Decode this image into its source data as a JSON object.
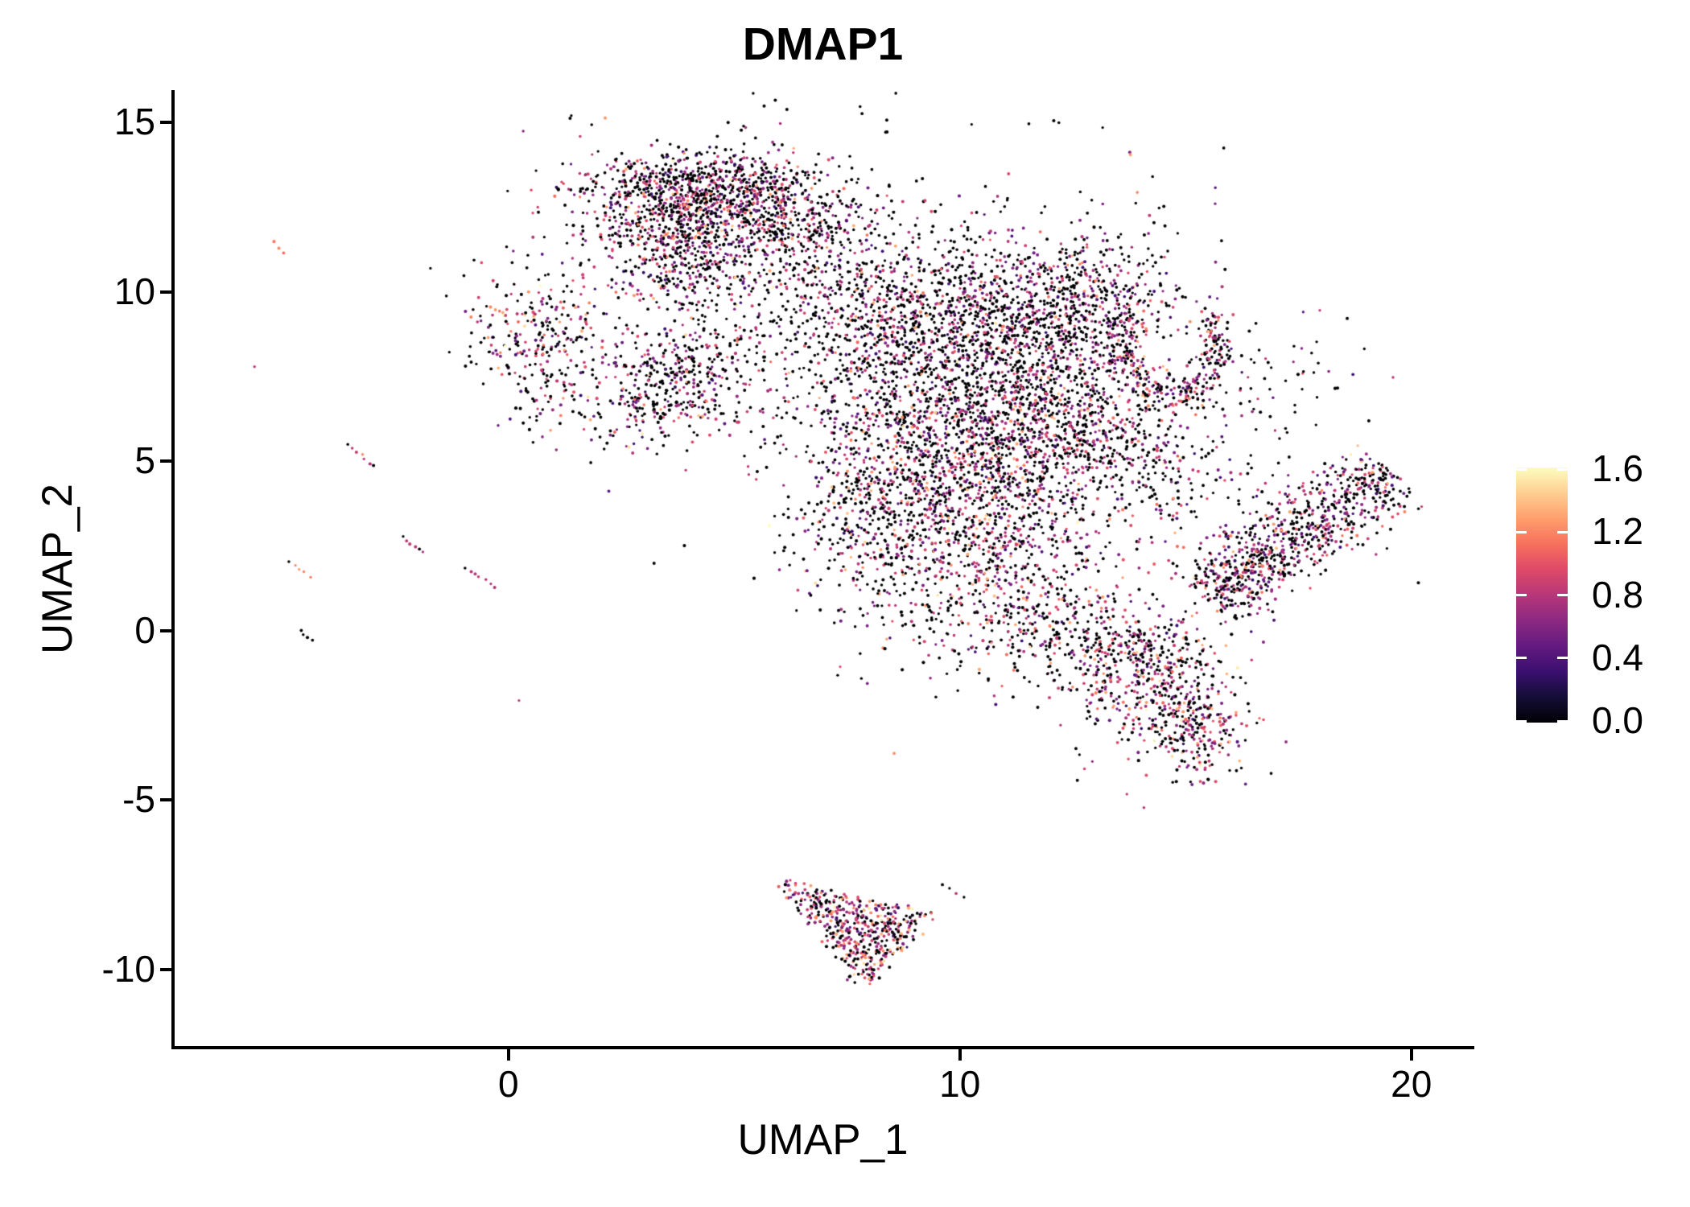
{
  "figure": {
    "title": "DMAP1"
  },
  "chart_data": {
    "type": "scatter",
    "title": "DMAP1",
    "xlabel": "UMAP_1",
    "ylabel": "UMAP_2",
    "xlim": [
      -7.43,
      21.36
    ],
    "ylim": [
      -12.31,
      15.95
    ],
    "grid": false,
    "x_ticks": [
      {
        "label": "0",
        "value": 0
      },
      {
        "label": "10",
        "value": 10
      },
      {
        "label": "20",
        "value": 20
      }
    ],
    "y_ticks": [
      {
        "label": "15",
        "value": 15
      },
      {
        "label": "10",
        "value": 10
      },
      {
        "label": "5",
        "value": 5
      },
      {
        "label": "0",
        "value": 0
      },
      {
        "label": "-5",
        "value": -5
      },
      {
        "label": "-10",
        "value": -10
      }
    ],
    "colorbar": {
      "position": "right",
      "min": 0.0,
      "max": 1.6,
      "palette": "magma",
      "ticks": [
        {
          "label": "1.6",
          "value": 1.6
        },
        {
          "label": "1.2",
          "value": 1.2
        },
        {
          "label": "0.8",
          "value": 0.8
        },
        {
          "label": "0.4",
          "value": 0.4
        },
        {
          "label": "0.0",
          "value": 0.0
        }
      ],
      "stops": [
        "#000004",
        "#140E36",
        "#3B0F70",
        "#641A80",
        "#8C2981",
        "#B73779",
        "#DE4968",
        "#F7705C",
        "#FE9F6D",
        "#FECE91",
        "#FCFDBF"
      ]
    },
    "style": {
      "point_radius_px": 1.85
    },
    "seed": 1337,
    "value_ranges": {
      "low": [
        0.25,
        0.55
      ],
      "mid": [
        0.55,
        1.0
      ],
      "high": [
        1.0,
        1.35
      ],
      "vhigh": [
        1.35,
        1.62
      ]
    },
    "value_mixes": {
      "std": [
        0.52,
        0.1,
        0.295,
        0.07,
        0.015
      ],
      "dark": [
        0.68,
        0.08,
        0.21,
        0.028,
        0.002
      ],
      "darkish": [
        0.58,
        0.09,
        0.28,
        0.045,
        0.005
      ],
      "warm": [
        0.45,
        0.08,
        0.33,
        0.12,
        0.02
      ],
      "hot": [
        0.36,
        0.08,
        0.34,
        0.18,
        0.04
      ]
    },
    "clusters": [
      {
        "id": "a1",
        "type": "gauss",
        "cx": 3.55,
        "cy": 12.45,
        "sx": 1.05,
        "sy": 0.72,
        "count": 480,
        "mix": "std"
      },
      {
        "id": "a2",
        "type": "gauss",
        "cx": 5.25,
        "cy": 12.4,
        "sx": 0.95,
        "sy": 0.75,
        "count": 430,
        "mix": "std"
      },
      {
        "id": "a3",
        "type": "gauss",
        "cx": 4.4,
        "cy": 13.35,
        "sx": 1.25,
        "sy": 0.45,
        "count": 240,
        "mix": "darkish"
      },
      {
        "id": "a4",
        "type": "gauss",
        "cx": 4.05,
        "cy": 10.7,
        "sx": 0.85,
        "sy": 0.65,
        "count": 230,
        "mix": "std"
      },
      {
        "id": "a5",
        "type": "gauss",
        "cx": 4.5,
        "cy": 12.0,
        "sx": 1.9,
        "sy": 1.5,
        "count": 260,
        "mix": "dark"
      },
      {
        "id": "a6",
        "type": "gauss",
        "cx": 6.55,
        "cy": 11.3,
        "sx": 0.75,
        "sy": 0.95,
        "count": 110,
        "mix": "dark"
      },
      {
        "id": "b1",
        "type": "gauss",
        "cx": 0.55,
        "cy": 8.7,
        "sx": 0.75,
        "sy": 0.95,
        "count": 240,
        "mix": "warm"
      },
      {
        "id": "b2",
        "type": "gauss",
        "cx": 0.9,
        "cy": 6.9,
        "sx": 0.5,
        "sy": 0.6,
        "count": 35,
        "mix": "dark"
      },
      {
        "id": "c1",
        "type": "gauss",
        "cx": 3.4,
        "cy": 7.1,
        "sx": 0.95,
        "sy": 0.8,
        "count": 370,
        "mix": "std"
      },
      {
        "id": "c2",
        "type": "gauss",
        "cx": 4.55,
        "cy": 8.3,
        "sx": 0.6,
        "sy": 0.6,
        "count": 80,
        "mix": "dark"
      },
      {
        "id": "d1",
        "type": "gauss",
        "cx": 8.6,
        "cy": 9.3,
        "sx": 1.25,
        "sy": 1.4,
        "count": 650,
        "mix": "darkish"
      },
      {
        "id": "d2",
        "type": "gauss",
        "cx": 11.2,
        "cy": 8.7,
        "sx": 1.45,
        "sy": 1.5,
        "count": 950,
        "mix": "darkish"
      },
      {
        "id": "d3",
        "type": "gauss",
        "cx": 9.4,
        "cy": 5.4,
        "sx": 1.45,
        "sy": 1.6,
        "count": 850,
        "mix": "std"
      },
      {
        "id": "d4",
        "type": "gauss",
        "cx": 12.3,
        "cy": 5.6,
        "sx": 1.45,
        "sy": 1.45,
        "count": 780,
        "mix": "std"
      },
      {
        "id": "d5",
        "type": "gauss",
        "cx": 10.3,
        "cy": 2.5,
        "sx": 1.25,
        "sy": 1.35,
        "count": 430,
        "mix": "warm"
      },
      {
        "id": "d6",
        "type": "gauss",
        "cx": 13.0,
        "cy": 9.9,
        "sx": 0.95,
        "sy": 0.85,
        "count": 260,
        "mix": "darkish"
      },
      {
        "id": "d7",
        "type": "gauss",
        "cx": 10.5,
        "cy": 6.5,
        "sx": 2.9,
        "sy": 3.2,
        "count": 650,
        "mix": "dark"
      },
      {
        "id": "d8",
        "type": "gauss",
        "cx": 11.8,
        "cy": 0.3,
        "sx": 0.95,
        "sy": 0.85,
        "count": 210,
        "mix": "warm"
      },
      {
        "id": "d9",
        "type": "gauss",
        "cx": 7.85,
        "cy": 2.9,
        "sx": 0.75,
        "sy": 1.15,
        "count": 240,
        "mix": "std"
      },
      {
        "id": "e1",
        "type": "crescent",
        "cx": 14.7,
        "cy": 8.35,
        "rx": 1.05,
        "ry": 1.45,
        "a0": 140,
        "a1": 400,
        "thick": 0.17,
        "count": 310,
        "mix": "std"
      },
      {
        "id": "n7",
        "type": "gauss",
        "cx": 16.8,
        "cy": 7.5,
        "sx": 0.85,
        "sy": 0.8,
        "count": 55,
        "mix": "dark"
      },
      {
        "id": "g1",
        "type": "band",
        "x1": 15.45,
        "y1": 0.9,
        "x2": 19.5,
        "y2": 4.75,
        "width": 0.52,
        "count": 720,
        "mix": "std"
      },
      {
        "id": "g2",
        "type": "gauss",
        "cx": 16.1,
        "cy": 1.8,
        "sx": 0.65,
        "sy": 0.65,
        "count": 110,
        "mix": "std"
      },
      {
        "id": "h1",
        "type": "gauss",
        "cx": 14.3,
        "cy": -1.55,
        "sx": 0.95,
        "sy": 1.0,
        "count": 400,
        "mix": "warm"
      },
      {
        "id": "h2",
        "type": "gauss",
        "cx": 15.15,
        "cy": -2.9,
        "sx": 0.65,
        "sy": 0.75,
        "count": 200,
        "mix": "warm"
      },
      {
        "id": "h3",
        "type": "gauss",
        "cx": 13.7,
        "cy": -0.3,
        "sx": 0.7,
        "sy": 0.6,
        "count": 130,
        "mix": "std"
      },
      {
        "id": "i1",
        "type": "triangle",
        "p1": [
          5.85,
          -7.35
        ],
        "p2": [
          9.35,
          -8.35
        ],
        "p3": [
          7.95,
          -10.55
        ],
        "count": 500,
        "mix": "hot"
      },
      {
        "id": "n1",
        "type": "gauss",
        "cx": 6.7,
        "cy": 12.1,
        "sx": 0.6,
        "sy": 0.7,
        "count": 70,
        "mix": "dark"
      },
      {
        "id": "n2",
        "type": "gauss",
        "cx": 6.3,
        "cy": 8.1,
        "sx": 1.1,
        "sy": 1.2,
        "count": 80,
        "mix": "dark"
      },
      {
        "id": "n3",
        "type": "gauss",
        "cx": 12.1,
        "cy": -0.9,
        "sx": 1.7,
        "sy": 0.75,
        "count": 80,
        "mix": "dark"
      },
      {
        "id": "n4",
        "type": "gauss",
        "cx": 8.9,
        "cy": 0.7,
        "sx": 0.75,
        "sy": 1.1,
        "count": 60,
        "mix": "dark"
      },
      {
        "id": "n5",
        "type": "gauss",
        "cx": 15.3,
        "cy": 4.6,
        "sx": 1.2,
        "sy": 1.0,
        "count": 80,
        "mix": "dark"
      },
      {
        "id": "n6",
        "type": "gauss",
        "cx": 2.0,
        "cy": 9.3,
        "sx": 0.9,
        "sy": 0.8,
        "count": 14,
        "mix": "dark"
      },
      {
        "id": "n8",
        "type": "gauss",
        "cx": 1.3,
        "cy": 6.1,
        "sx": 0.5,
        "sy": 0.5,
        "count": 10,
        "mix": "dark"
      }
    ],
    "streaks": [
      {
        "id": "s1",
        "x1": -5.2,
        "y1": 11.45,
        "x2": -4.95,
        "y2": 11.15,
        "values": [
          1.15,
          1.2,
          1.1
        ]
      },
      {
        "id": "s2",
        "x1": -3.55,
        "y1": 5.5,
        "x2": -3.0,
        "y2": 4.85,
        "values": [
          0,
          0.8,
          0.85,
          1.2,
          0.8,
          0.75,
          0
        ]
      },
      {
        "id": "s3",
        "x1": -2.35,
        "y1": 2.75,
        "x2": -1.9,
        "y2": 2.3,
        "values": [
          0,
          0.8,
          0.85,
          0.8,
          0,
          0.75
        ]
      },
      {
        "id": "s4",
        "x1": -4.85,
        "y1": 2.05,
        "x2": -4.4,
        "y2": 1.6,
        "values": [
          0,
          1.2,
          1.25,
          1.2,
          1.15
        ]
      },
      {
        "id": "s5",
        "x1": -0.95,
        "y1": 1.85,
        "x2": -0.3,
        "y2": 1.3,
        "values": [
          0,
          0.78,
          0.8,
          0.85,
          0.8,
          0.75,
          0.8
        ]
      },
      {
        "id": "s6",
        "x1": -4.6,
        "y1": 0.0,
        "x2": -4.35,
        "y2": -0.3,
        "values": [
          0,
          0,
          0,
          0
        ]
      },
      {
        "id": "s7",
        "x1": 0.25,
        "y1": -2.05,
        "x2": 0.25,
        "y2": -2.05,
        "values": [
          0.8
        ]
      },
      {
        "id": "s8",
        "x1": -5.65,
        "y1": 7.8,
        "x2": -5.65,
        "y2": 7.8,
        "values": [
          0.82
        ]
      },
      {
        "id": "b3",
        "x1": -0.38,
        "y1": 9.55,
        "x2": -0.05,
        "y2": 9.3,
        "values": [
          1.2,
          1.25,
          1.1,
          1.3,
          0.85
        ]
      },
      {
        "id": "i2",
        "x1": 9.6,
        "y1": -7.5,
        "x2": 10.1,
        "y2": -7.85,
        "values": [
          0,
          0,
          0.8,
          0
        ]
      }
    ]
  }
}
